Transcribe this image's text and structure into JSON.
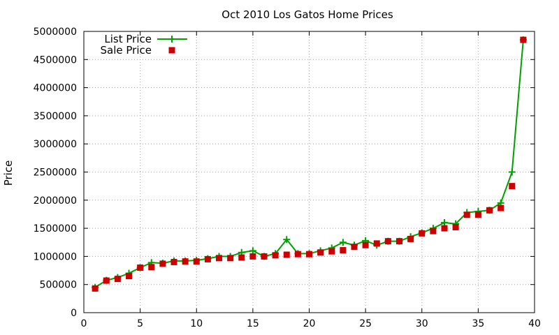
{
  "chart_data": {
    "type": "line",
    "title": "Oct 2010 Los Gatos Home Prices",
    "xlabel": "",
    "ylabel": "Price",
    "xlim": [
      0,
      40
    ],
    "ylim": [
      0,
      5000000
    ],
    "x_ticks": [
      0,
      5,
      10,
      15,
      20,
      25,
      30,
      35,
      40
    ],
    "y_ticks": [
      0,
      500000,
      1000000,
      1500000,
      2000000,
      2500000,
      3000000,
      3500000,
      4000000,
      4500000,
      5000000
    ],
    "grid": true,
    "legend_position": "top-left",
    "x": [
      1,
      2,
      3,
      4,
      5,
      6,
      7,
      8,
      9,
      10,
      11,
      12,
      13,
      14,
      15,
      16,
      17,
      18,
      19,
      20,
      21,
      22,
      23,
      24,
      25,
      26,
      27,
      28,
      29,
      30,
      31,
      32,
      33,
      34,
      35,
      36,
      37,
      38,
      39
    ],
    "series": [
      {
        "name": "List Price",
        "style": "line-points",
        "color": "#00a000",
        "marker": "plus",
        "values": [
          450000,
          575000,
          625000,
          700000,
          800000,
          890000,
          880000,
          920000,
          920000,
          930000,
          960000,
          1000000,
          1000000,
          1070000,
          1100000,
          1000000,
          1050000,
          1300000,
          1050000,
          1050000,
          1100000,
          1150000,
          1250000,
          1200000,
          1280000,
          1200000,
          1270000,
          1270000,
          1350000,
          1420000,
          1500000,
          1600000,
          1580000,
          1780000,
          1800000,
          1820000,
          1950000,
          2500000,
          4850000
        ]
      },
      {
        "name": "Sale Price",
        "style": "points",
        "color": "#cc0000",
        "marker": "square",
        "values": [
          430000,
          570000,
          600000,
          650000,
          800000,
          810000,
          870000,
          900000,
          910000,
          910000,
          950000,
          970000,
          970000,
          980000,
          1000000,
          1000000,
          1020000,
          1030000,
          1040000,
          1040000,
          1070000,
          1090000,
          1110000,
          1170000,
          1200000,
          1230000,
          1270000,
          1270000,
          1310000,
          1410000,
          1450000,
          1500000,
          1520000,
          1740000,
          1740000,
          1820000,
          1860000,
          2250000,
          4850000
        ]
      }
    ]
  }
}
